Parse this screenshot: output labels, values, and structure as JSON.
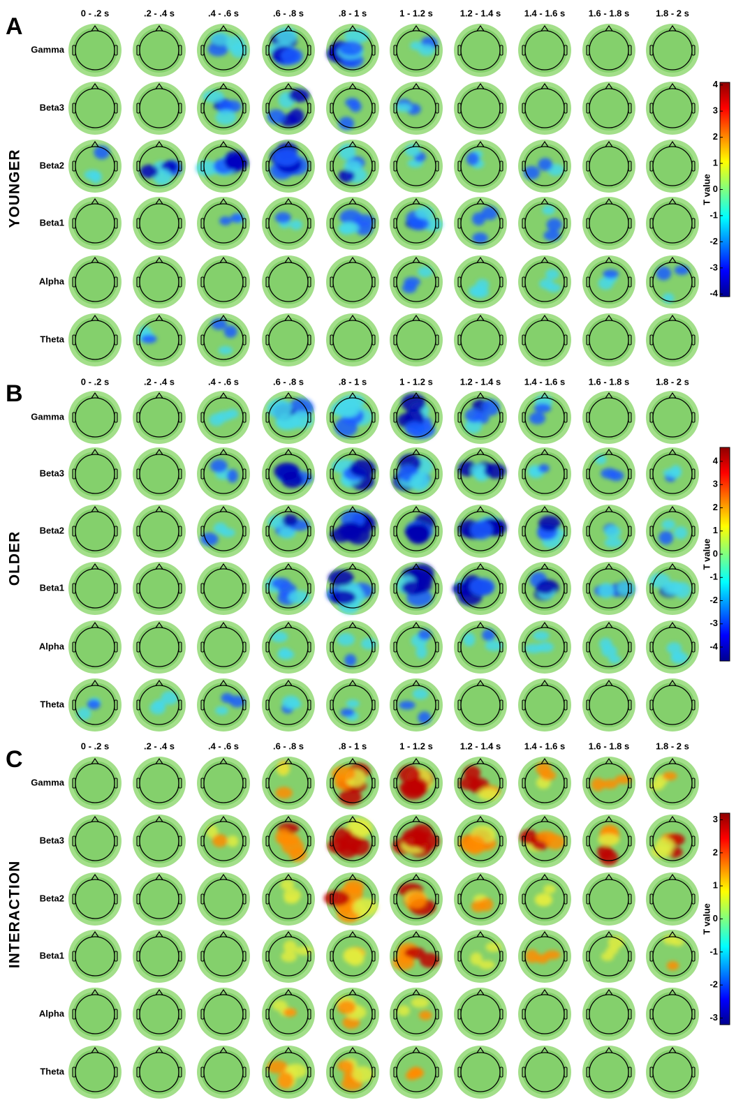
{
  "panels": [
    {
      "letter": "A",
      "group": "YOUNGER",
      "time_windows": [
        "0 - .2 s",
        ".2 - .4 s",
        ".4 - .6 s",
        ".6 - .8 s",
        ".8 - 1 s",
        "1 - 1.2 s",
        "1.2 - 1.4 s",
        "1.4 - 1.6 s",
        "1.6 - 1.8 s",
        "1.8 - 2 s"
      ],
      "bands": [
        "Gamma",
        "Beta3",
        "Beta2",
        "Beta1",
        "Alpha",
        "Theta"
      ],
      "colorbar": {
        "label": "T value",
        "lim": [
          -4.1,
          4.1
        ],
        "ticks": [
          4,
          3,
          2,
          1,
          0,
          -1,
          -2,
          -3,
          -4
        ]
      }
    },
    {
      "letter": "B",
      "group": "OLDER",
      "time_windows": [
        "0 - .2 s",
        ".2 - .4 s",
        ".4 - .6 s",
        ".6 - .8 s",
        ".8 - 1 s",
        "1 - 1.2 s",
        "1.2 - 1.4 s",
        "1.4 - 1.6 s",
        "1.6 - 1.8 s",
        "1.8 - 2 s"
      ],
      "bands": [
        "Gamma",
        "Beta3",
        "Beta2",
        "Beta1",
        "Alpha",
        "Theta"
      ],
      "colorbar": {
        "label": "T value",
        "lim": [
          -4.6,
          4.6
        ],
        "ticks": [
          4,
          3,
          2,
          1,
          0,
          -1,
          -2,
          -3,
          -4
        ]
      }
    },
    {
      "letter": "C",
      "group": "INTERACTION",
      "time_windows": [
        "0 - .2 s",
        ".2 - .4 s",
        ".4 - .6 s",
        ".6 - .8 s",
        ".8 - 1 s",
        "1 - 1.2 s",
        "1.2 - 1.4 s",
        "1.4 - 1.6 s",
        "1.6 - 1.8 s",
        "1.8 - 2 s"
      ],
      "bands": [
        "Gamma",
        "Beta3",
        "Beta2",
        "Beta1",
        "Alpha",
        "Theta"
      ],
      "colorbar": {
        "label": "T value",
        "lim": [
          -3.2,
          3.2
        ],
        "ticks": [
          3,
          2,
          1,
          0,
          -1,
          -2,
          -3
        ]
      }
    }
  ]
}
